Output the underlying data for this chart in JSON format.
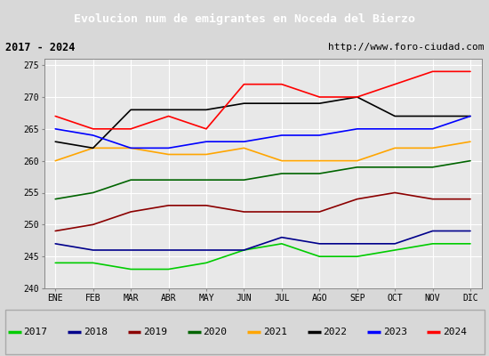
{
  "title": "Evolucion num de emigrantes en Noceda del Bierzo",
  "subtitle_left": "2017 - 2024",
  "subtitle_right": "http://www.foro-ciudad.com",
  "ylim": [
    240,
    276
  ],
  "yticks": [
    240,
    245,
    250,
    255,
    260,
    265,
    270,
    275
  ],
  "months": [
    "ENE",
    "FEB",
    "MAR",
    "ABR",
    "MAY",
    "JUN",
    "JUL",
    "AGO",
    "SEP",
    "OCT",
    "NOV",
    "DIC"
  ],
  "series": {
    "2017": {
      "color": "#00cc00",
      "data": [
        244,
        244,
        243,
        243,
        244,
        246,
        247,
        245,
        245,
        246,
        247,
        247
      ]
    },
    "2018": {
      "color": "#00008b",
      "data": [
        247,
        246,
        246,
        246,
        246,
        246,
        248,
        247,
        247,
        247,
        249,
        249
      ]
    },
    "2019": {
      "color": "#8b0000",
      "data": [
        249,
        250,
        252,
        253,
        253,
        252,
        252,
        252,
        254,
        255,
        254,
        254
      ]
    },
    "2020": {
      "color": "#006400",
      "data": [
        254,
        255,
        257,
        257,
        257,
        257,
        258,
        258,
        259,
        259,
        259,
        260
      ]
    },
    "2021": {
      "color": "#ffa500",
      "data": [
        260,
        262,
        262,
        261,
        261,
        262,
        260,
        260,
        260,
        262,
        262,
        263
      ]
    },
    "2022": {
      "color": "#000000",
      "data": [
        263,
        262,
        268,
        268,
        268,
        269,
        269,
        269,
        270,
        267,
        267,
        267
      ]
    },
    "2023": {
      "color": "#0000ff",
      "data": [
        265,
        264,
        262,
        262,
        263,
        263,
        264,
        264,
        265,
        265,
        265,
        267
      ]
    },
    "2024": {
      "color": "#ff0000",
      "data": [
        267,
        265,
        265,
        267,
        265,
        272,
        272,
        270,
        270,
        272,
        274,
        274
      ]
    }
  },
  "background_color": "#d8d8d8",
  "plot_bg_color": "#e8e8e8",
  "title_bg_color": "#4f81bd",
  "title_color": "#ffffff",
  "grid_color": "#ffffff",
  "subtitle_bg_color": "#c8c8c8",
  "legend_bg_color": "#f0f0f0",
  "legend_order": [
    "2017",
    "2018",
    "2019",
    "2020",
    "2021",
    "2022",
    "2023",
    "2024"
  ]
}
